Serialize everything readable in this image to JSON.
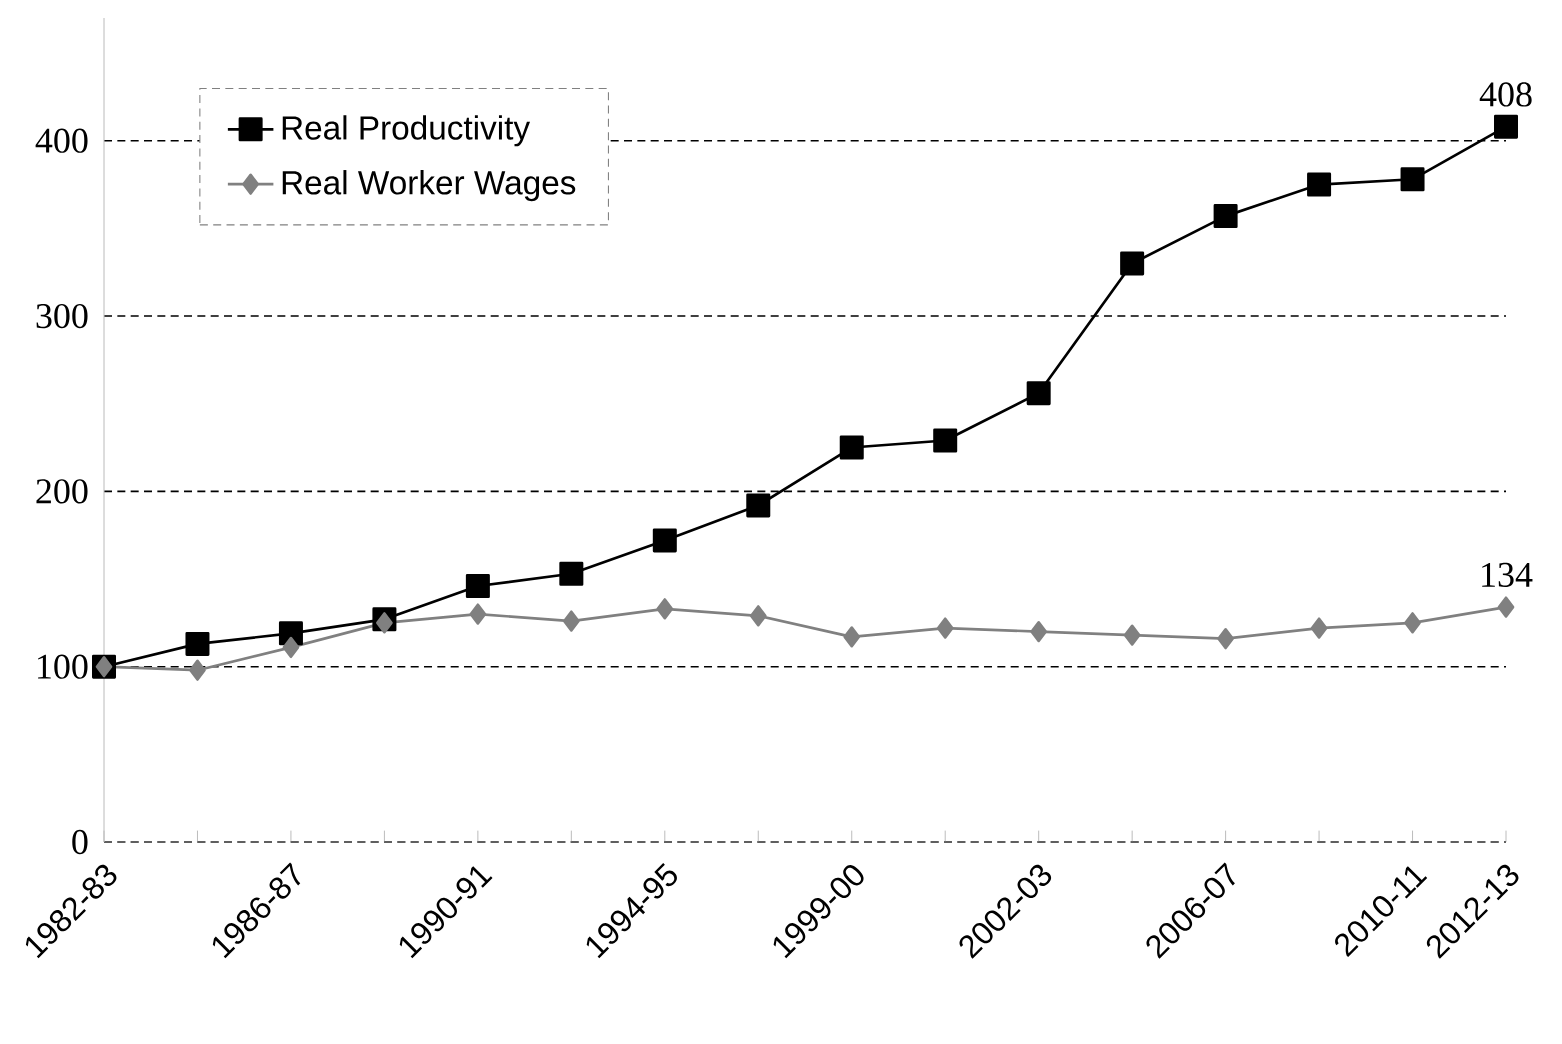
{
  "chart_data": {
    "type": "line",
    "categories": [
      "1982-83",
      null,
      "1986-87",
      null,
      "1990-91",
      null,
      "1994-95",
      null,
      "1999-00",
      null,
      "2002-03",
      null,
      "2006-07",
      null,
      "2010-11",
      "2012-13"
    ],
    "series": [
      {
        "name": "Real Productivity",
        "color": "#000000",
        "marker": "square",
        "values": [
          100,
          113,
          119,
          127,
          146,
          153,
          172,
          192,
          225,
          229,
          256,
          330,
          357,
          375,
          378,
          408
        ],
        "value_labels": [
          null,
          null,
          null,
          null,
          null,
          null,
          null,
          null,
          null,
          null,
          null,
          null,
          null,
          null,
          null,
          "408"
        ]
      },
      {
        "name": "Real Worker Wages",
        "color": "#808080",
        "marker": "diamond",
        "values": [
          100,
          98,
          111,
          125,
          130,
          126,
          133,
          129,
          117,
          122,
          120,
          118,
          116,
          122,
          125,
          134
        ],
        "value_labels": [
          null,
          null,
          null,
          null,
          null,
          null,
          null,
          null,
          null,
          null,
          null,
          null,
          null,
          null,
          null,
          "134"
        ]
      }
    ],
    "ylim": [
      0,
      470
    ],
    "yticks": [
      0,
      100,
      200,
      300,
      400
    ],
    "grid": "y",
    "legend": "top left",
    "line_style": "solid"
  }
}
